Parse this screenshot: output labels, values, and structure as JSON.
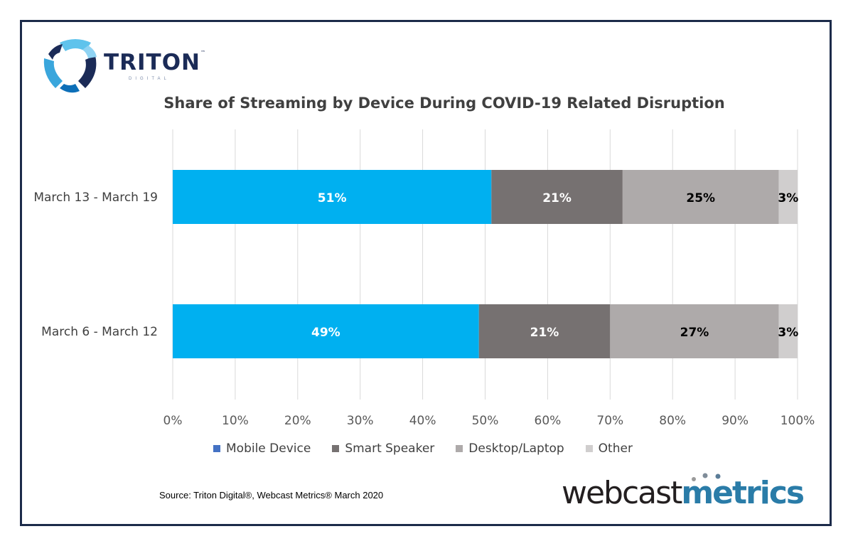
{
  "branding": {
    "triton_name": "TRITON",
    "triton_tm": "™",
    "triton_sub": "DIGITAL",
    "webcast_part1": "webcast",
    "webcast_part2": "metrics"
  },
  "colors": {
    "frame": "#1c2b4a",
    "mobile": "#00b0f0",
    "mobile_legend": "#4472c4",
    "smart_speaker": "#767171",
    "desktop": "#aeaaaa",
    "other": "#d0cece",
    "webcast_blue": "#2a7ca8"
  },
  "source": "Source: Triton Digital®, Webcast Metrics® March 2020",
  "chart_data": {
    "type": "bar",
    "orientation": "horizontal",
    "stacked": true,
    "title": "Share of Streaming by Device During COVID-19 Related Disruption",
    "categories": [
      "March 13 - March 19",
      "March 6 - March 12"
    ],
    "series": [
      {
        "name": "Mobile Device",
        "values": [
          51,
          49
        ],
        "labels": [
          "51%",
          "49%"
        ],
        "color": "#00b0f0",
        "legend_color": "#4472c4",
        "label_color": "#ffffff"
      },
      {
        "name": "Smart Speaker",
        "values": [
          21,
          21
        ],
        "labels": [
          "21%",
          "21%"
        ],
        "color": "#767171",
        "legend_color": "#767171",
        "label_color": "#ffffff"
      },
      {
        "name": "Desktop/Laptop",
        "values": [
          25,
          27
        ],
        "labels": [
          "25%",
          "27%"
        ],
        "color": "#aeaaaa",
        "legend_color": "#aeaaaa",
        "label_color": "#000000"
      },
      {
        "name": "Other",
        "values": [
          3,
          3
        ],
        "labels": [
          "3%",
          "3%"
        ],
        "color": "#d0cece",
        "legend_color": "#d0cece",
        "label_color": "#000000"
      }
    ],
    "xlim": [
      0,
      100
    ],
    "xticks": [
      "0%",
      "10%",
      "20%",
      "30%",
      "40%",
      "50%",
      "60%",
      "70%",
      "80%",
      "90%",
      "100%"
    ],
    "grid": true,
    "legend_position": "bottom"
  }
}
